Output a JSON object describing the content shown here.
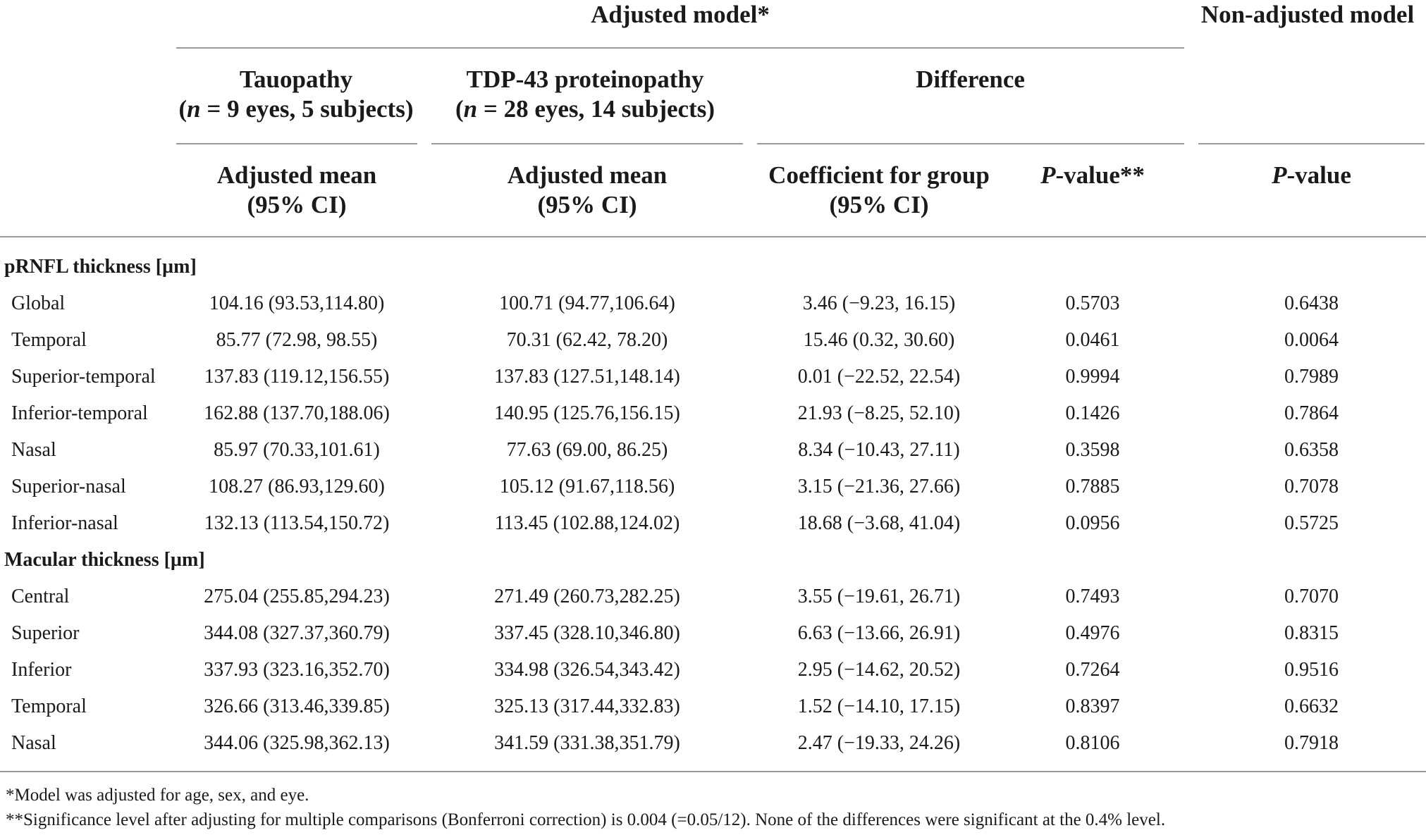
{
  "headers": {
    "adjusted_model": "Adjusted model*",
    "non_adjusted_model": "Non-adjusted model",
    "tauopathy": {
      "title": "Tauopathy",
      "n_italic": "n",
      "n_rest": " = 9 eyes, 5 subjects)"
    },
    "tdp43": {
      "title": "TDP-43 proteinopathy",
      "n_italic": "n",
      "n_rest": " = 28 eyes, 14 subjects)"
    },
    "difference": "Difference",
    "adjusted_mean_line1": "Adjusted mean",
    "ci_line": "(95% CI)",
    "coef_line1": "Coefficient for group",
    "p_italic": "P",
    "p_rest_dstar": "-value**",
    "p_rest": "-value"
  },
  "sections": [
    {
      "title": "pRNFL thickness [µm]",
      "rows": [
        {
          "label": "Global",
          "tau": "104.16 (93.53,114.80)",
          "tdp": "100.71 (94.77,106.64)",
          "coef": "3.46 (−9.23, 16.15)",
          "p": "0.5703",
          "p_non": "0.6438"
        },
        {
          "label": "Temporal",
          "tau": "85.77 (72.98, 98.55)",
          "tdp": "70.31 (62.42, 78.20)",
          "coef": "15.46 (0.32, 30.60)",
          "p": "0.0461",
          "p_non": "0.0064"
        },
        {
          "label": "Superior-temporal",
          "tau": "137.83 (119.12,156.55)",
          "tdp": "137.83 (127.51,148.14)",
          "coef": "0.01 (−22.52, 22.54)",
          "p": "0.9994",
          "p_non": "0.7989"
        },
        {
          "label": "Inferior-temporal",
          "tau": "162.88 (137.70,188.06)",
          "tdp": "140.95 (125.76,156.15)",
          "coef": "21.93 (−8.25, 52.10)",
          "p": "0.1426",
          "p_non": "0.7864"
        },
        {
          "label": "Nasal",
          "tau": "85.97 (70.33,101.61)",
          "tdp": "77.63 (69.00, 86.25)",
          "coef": "8.34 (−10.43, 27.11)",
          "p": "0.3598",
          "p_non": "0.6358"
        },
        {
          "label": "Superior-nasal",
          "tau": "108.27 (86.93,129.60)",
          "tdp": "105.12 (91.67,118.56)",
          "coef": "3.15 (−21.36, 27.66)",
          "p": "0.7885",
          "p_non": "0.7078"
        },
        {
          "label": "Inferior-nasal",
          "tau": "132.13 (113.54,150.72)",
          "tdp": "113.45 (102.88,124.02)",
          "coef": "18.68 (−3.68, 41.04)",
          "p": "0.0956",
          "p_non": "0.5725"
        }
      ]
    },
    {
      "title": "Macular thickness [µm]",
      "rows": [
        {
          "label": "Central",
          "tau": "275.04 (255.85,294.23)",
          "tdp": "271.49 (260.73,282.25)",
          "coef": "3.55 (−19.61, 26.71)",
          "p": "0.7493",
          "p_non": "0.7070"
        },
        {
          "label": "Superior",
          "tau": "344.08 (327.37,360.79)",
          "tdp": "337.45 (328.10,346.80)",
          "coef": "6.63 (−13.66, 26.91)",
          "p": "0.4976",
          "p_non": "0.8315"
        },
        {
          "label": "Inferior",
          "tau": "337.93 (323.16,352.70)",
          "tdp": "334.98 (326.54,343.42)",
          "coef": "2.95 (−14.62, 20.52)",
          "p": "0.7264",
          "p_non": "0.9516"
        },
        {
          "label": "Temporal",
          "tau": "326.66 (313.46,339.85)",
          "tdp": "325.13 (317.44,332.83)",
          "coef": "1.52 (−14.10, 17.15)",
          "p": "0.8397",
          "p_non": "0.6632"
        },
        {
          "label": "Nasal",
          "tau": "344.06 (325.98,362.13)",
          "tdp": "341.59 (331.38,351.79)",
          "coef": "2.47 (−19.33, 24.26)",
          "p": "0.8106",
          "p_non": "0.7918"
        }
      ]
    }
  ],
  "footnotes": [
    "*Model was adjusted for age, sex, and eye.",
    "**Significance level after adjusting for multiple comparisons (Bonferroni correction) is 0.004 (=0.05/12). None of the differences were significant at the 0.4% level."
  ]
}
